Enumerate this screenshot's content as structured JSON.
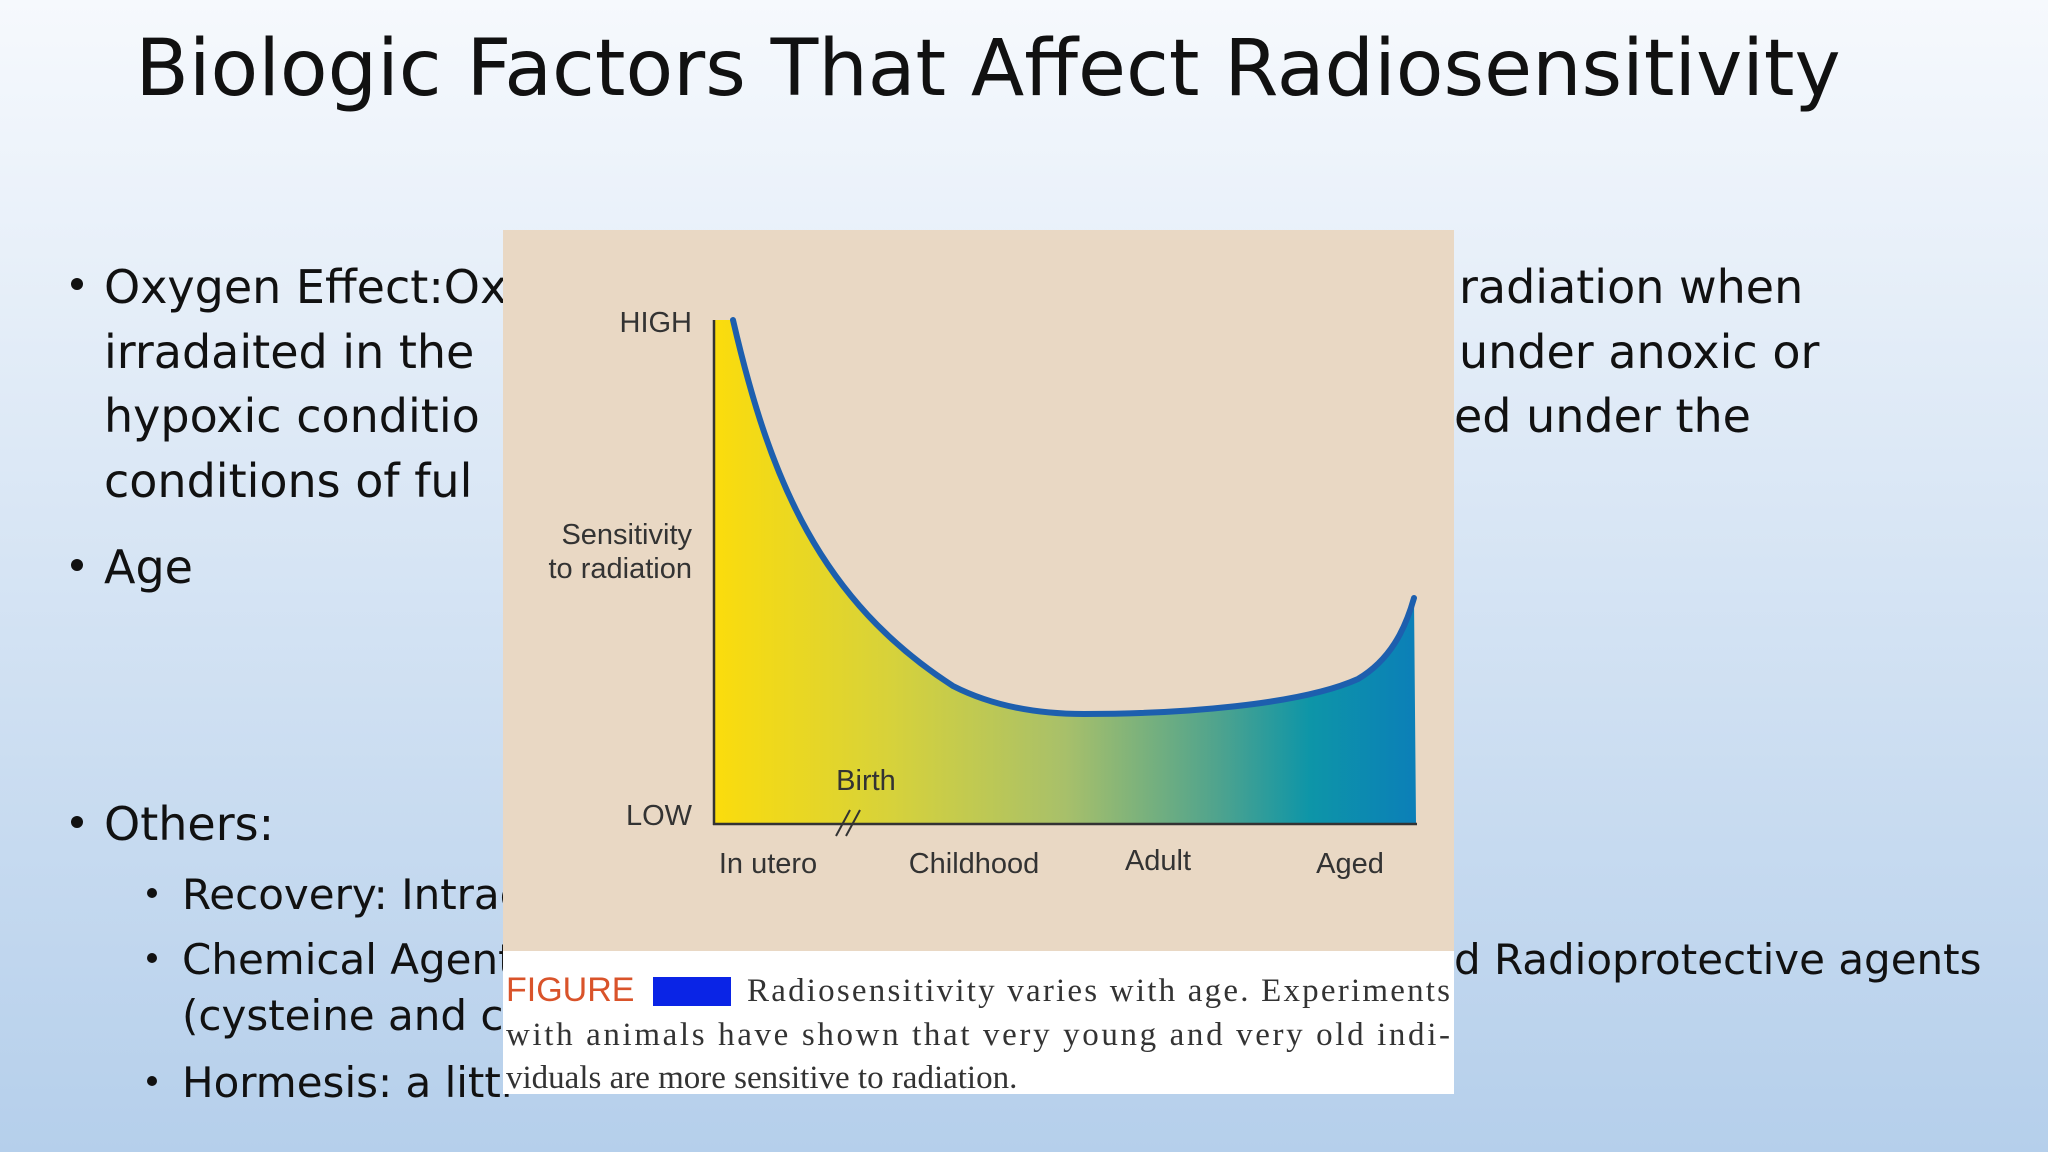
{
  "slide": {
    "title": "Biologic Factors That Affect Radiosensitivity",
    "oxygen_lines": [
      {
        "left": "Oxygen Effect:Ox",
        "right": "radiation when"
      },
      {
        "left": "irradaited in the",
        "right": "under anoxic or"
      },
      {
        "left": "hypoxic conditio",
        "right": "ed under the"
      },
      {
        "left": "conditions of ful"
      }
    ],
    "age": "Age",
    "others": "Others:",
    "sub_bullets": [
      {
        "left": "Recovery: Intrac"
      },
      {
        "left": "Chemical Agent",
        "right": "d Radioprotective agents",
        "continuation": "(cysteine and cy"
      },
      {
        "left": "Hormesis: a littl"
      }
    ],
    "figure": {
      "high": "HIGH",
      "low": "LOW",
      "y_label": [
        "Sensitivity",
        "to radiation"
      ],
      "birth": "Birth",
      "x_labels": [
        "In utero",
        "Childhood",
        "Adult",
        "Aged"
      ],
      "caption_label": "FIGURE",
      "caption_lines": [
        "Radiosensitivity varies with age. Experiments",
        "with animals have shown that very young and very old indi-",
        "viduals are more sensitive to radiation."
      ]
    }
  }
}
